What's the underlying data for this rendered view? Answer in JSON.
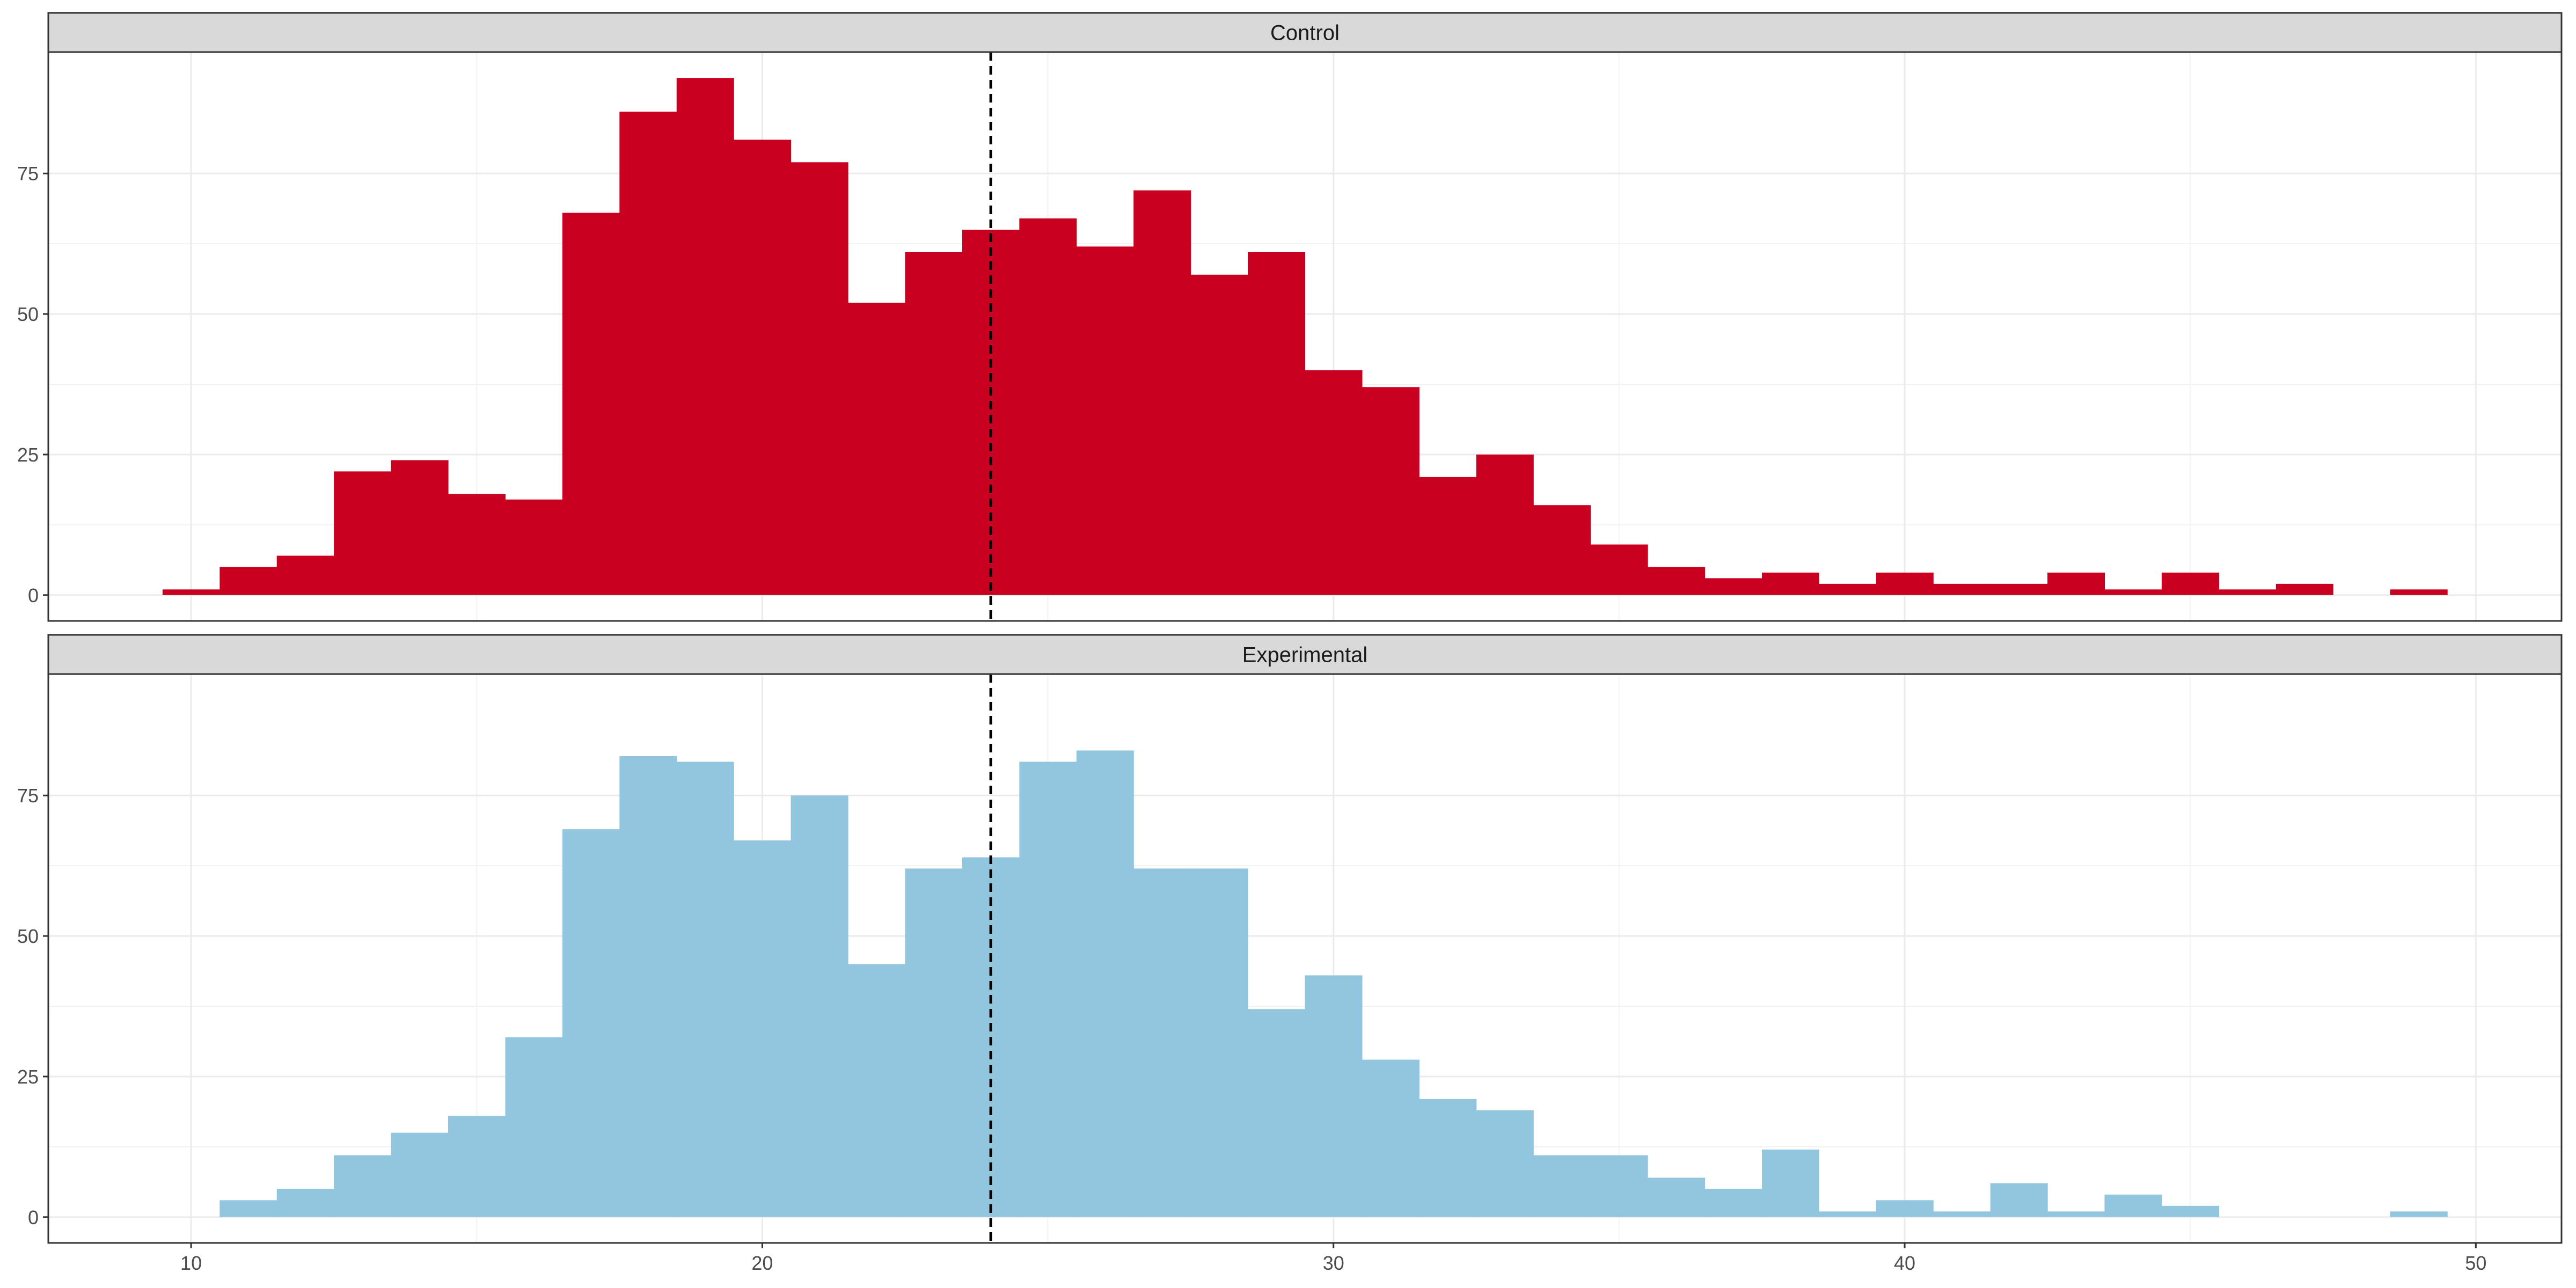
{
  "chart_data": {
    "type": "bar",
    "subtype": "faceted-histogram",
    "bin_width": 1,
    "x_ticks": [
      10,
      20,
      30,
      40,
      50
    ],
    "y_ticks": [
      0,
      25,
      50,
      75
    ],
    "xlim": [
      7.5,
      51.5
    ],
    "ylim": [
      -4.6,
      96.6
    ],
    "grid": true,
    "panels": [
      {
        "name": "Control",
        "color": "#C90020",
        "vline_x": 24,
        "bins": [
          {
            "x": 10,
            "count": 1
          },
          {
            "x": 11,
            "count": 5
          },
          {
            "x": 12,
            "count": 7
          },
          {
            "x": 13,
            "count": 22
          },
          {
            "x": 14,
            "count": 24
          },
          {
            "x": 15,
            "count": 18
          },
          {
            "x": 16,
            "count": 17
          },
          {
            "x": 17,
            "count": 68
          },
          {
            "x": 18,
            "count": 86
          },
          {
            "x": 19,
            "count": 92
          },
          {
            "x": 20,
            "count": 81
          },
          {
            "x": 21,
            "count": 77
          },
          {
            "x": 22,
            "count": 52
          },
          {
            "x": 23,
            "count": 61
          },
          {
            "x": 24,
            "count": 65
          },
          {
            "x": 25,
            "count": 67
          },
          {
            "x": 26,
            "count": 62
          },
          {
            "x": 27,
            "count": 72
          },
          {
            "x": 28,
            "count": 57
          },
          {
            "x": 29,
            "count": 61
          },
          {
            "x": 30,
            "count": 40
          },
          {
            "x": 31,
            "count": 37
          },
          {
            "x": 32,
            "count": 21
          },
          {
            "x": 33,
            "count": 25
          },
          {
            "x": 34,
            "count": 16
          },
          {
            "x": 35,
            "count": 9
          },
          {
            "x": 36,
            "count": 5
          },
          {
            "x": 37,
            "count": 3
          },
          {
            "x": 38,
            "count": 4
          },
          {
            "x": 39,
            "count": 2
          },
          {
            "x": 40,
            "count": 4
          },
          {
            "x": 41,
            "count": 2
          },
          {
            "x": 42,
            "count": 2
          },
          {
            "x": 43,
            "count": 4
          },
          {
            "x": 44,
            "count": 1
          },
          {
            "x": 45,
            "count": 4
          },
          {
            "x": 46,
            "count": 1
          },
          {
            "x": 47,
            "count": 2
          },
          {
            "x": 48,
            "count": 0
          },
          {
            "x": 49,
            "count": 1
          }
        ]
      },
      {
        "name": "Experimental",
        "color": "#92C5DE",
        "vline_x": 24,
        "bins": [
          {
            "x": 11,
            "count": 3
          },
          {
            "x": 12,
            "count": 5
          },
          {
            "x": 13,
            "count": 11
          },
          {
            "x": 14,
            "count": 15
          },
          {
            "x": 15,
            "count": 18
          },
          {
            "x": 16,
            "count": 32
          },
          {
            "x": 17,
            "count": 69
          },
          {
            "x": 18,
            "count": 82
          },
          {
            "x": 19,
            "count": 81
          },
          {
            "x": 20,
            "count": 67
          },
          {
            "x": 21,
            "count": 75
          },
          {
            "x": 22,
            "count": 45
          },
          {
            "x": 23,
            "count": 62
          },
          {
            "x": 24,
            "count": 64
          },
          {
            "x": 25,
            "count": 81
          },
          {
            "x": 26,
            "count": 83
          },
          {
            "x": 27,
            "count": 62
          },
          {
            "x": 28,
            "count": 62
          },
          {
            "x": 29,
            "count": 37
          },
          {
            "x": 30,
            "count": 43
          },
          {
            "x": 31,
            "count": 28
          },
          {
            "x": 32,
            "count": 21
          },
          {
            "x": 33,
            "count": 19
          },
          {
            "x": 34,
            "count": 11
          },
          {
            "x": 35,
            "count": 11
          },
          {
            "x": 36,
            "count": 7
          },
          {
            "x": 37,
            "count": 5
          },
          {
            "x": 38,
            "count": 12
          },
          {
            "x": 39,
            "count": 1
          },
          {
            "x": 40,
            "count": 3
          },
          {
            "x": 41,
            "count": 1
          },
          {
            "x": 42,
            "count": 6
          },
          {
            "x": 43,
            "count": 1
          },
          {
            "x": 44,
            "count": 4
          },
          {
            "x": 45,
            "count": 2
          },
          {
            "x": 46,
            "count": 0
          },
          {
            "x": 47,
            "count": 0
          },
          {
            "x": 48,
            "count": 0
          },
          {
            "x": 49,
            "count": 1
          }
        ]
      }
    ]
  }
}
